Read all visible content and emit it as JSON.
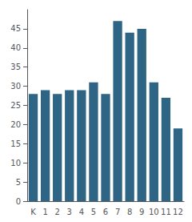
{
  "chart_data": {
    "type": "bar",
    "categories": [
      "K",
      "1",
      "2",
      "3",
      "4",
      "5",
      "6",
      "7",
      "8",
      "9",
      "10",
      "11",
      "12"
    ],
    "values": [
      28,
      29,
      28,
      29,
      29,
      31,
      28,
      47,
      44,
      45,
      31,
      27,
      19
    ],
    "color": "#2e6484",
    "ylim": [
      0,
      50
    ],
    "yticks": [
      0,
      5,
      10,
      15,
      20,
      25,
      30,
      35,
      40,
      45
    ],
    "grid": false
  }
}
